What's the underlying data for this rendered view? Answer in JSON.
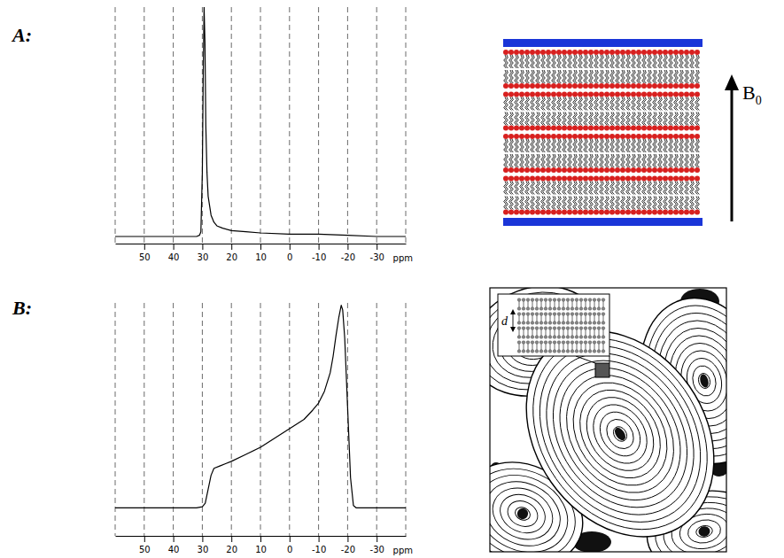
{
  "panel_labels": [
    "A:",
    "B:"
  ],
  "diagram": {
    "field_label": {
      "main": "B",
      "subscript": "0"
    },
    "spacing_label": "d"
  },
  "chart_data": [
    {
      "type": "line",
      "color": "#000000",
      "grid": true,
      "tick_labels": "x",
      "xlabel": "ppm",
      "xlim": [
        60,
        -40
      ],
      "ylim": [
        0,
        1
      ],
      "xticks": [
        50,
        40,
        30,
        20,
        10,
        0,
        -10,
        -20,
        -30
      ],
      "x": [
        60,
        50,
        40,
        35,
        32,
        31,
        30.5,
        30,
        29.7,
        29.4,
        29.1,
        28.8,
        28.4,
        28,
        27,
        26,
        25,
        23,
        20,
        15,
        10,
        0,
        -10,
        -20,
        -30,
        -40
      ],
      "values": [
        0.03,
        0.03,
        0.03,
        0.03,
        0.03,
        0.035,
        0.05,
        0.3,
        0.7,
        1.0,
        0.85,
        0.5,
        0.3,
        0.2,
        0.12,
        0.09,
        0.075,
        0.065,
        0.055,
        0.05,
        0.045,
        0.04,
        0.04,
        0.035,
        0.03,
        0.03
      ]
    },
    {
      "type": "line",
      "color": "#000000",
      "grid": true,
      "tick_labels": "x",
      "xlabel": "ppm",
      "xlim": [
        60,
        -40
      ],
      "ylim": [
        0,
        1
      ],
      "xticks": [
        50,
        40,
        30,
        20,
        10,
        0,
        -10,
        -20,
        -30
      ],
      "x": [
        60,
        40,
        32,
        30,
        29,
        28,
        27,
        26,
        24,
        22,
        20,
        15,
        10,
        5,
        0,
        -5,
        -8,
        -10,
        -12,
        -14,
        -15,
        -16,
        -17,
        -17.8,
        -18.3,
        -19,
        -20,
        -21,
        -22,
        -23,
        -30,
        -40
      ],
      "values": [
        0.12,
        0.12,
        0.12,
        0.125,
        0.14,
        0.2,
        0.26,
        0.29,
        0.3,
        0.31,
        0.32,
        0.35,
        0.38,
        0.42,
        0.46,
        0.5,
        0.54,
        0.57,
        0.62,
        0.7,
        0.77,
        0.86,
        0.94,
        0.99,
        0.97,
        0.85,
        0.55,
        0.25,
        0.13,
        0.12,
        0.12,
        0.12
      ]
    }
  ]
}
